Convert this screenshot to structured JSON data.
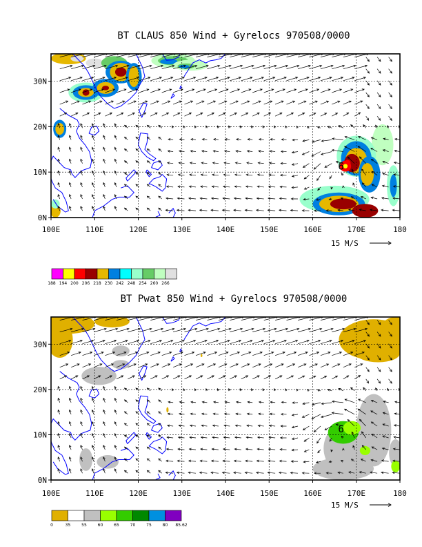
{
  "panels": [
    {
      "title": "BT CLAUS 850 Wind + Gyrelocs 970508/0000",
      "x_ticks": [
        "100E",
        "110E",
        "120E",
        "130E",
        "140E",
        "150E",
        "160E",
        "170E",
        "180"
      ],
      "y_ticks": [
        "0N",
        "10N",
        "20N",
        "30N"
      ],
      "scale_label": "15 M/S",
      "field": "cloud",
      "colorbar": {
        "labels": [
          "188",
          "194",
          "200",
          "206",
          "218",
          "230",
          "242",
          "248",
          "254",
          "260",
          "266"
        ],
        "colors": [
          "#ff00ff",
          "#ffff00",
          "#ff0000",
          "#990000",
          "#e6b800",
          "#0080e0",
          "#00ffff",
          "#99ffcc",
          "#66cc66",
          "#c0ffc0",
          "#e0e0e0"
        ]
      }
    },
    {
      "title": "BT Pwat 850 Wind + Gyrelocs 970508/0000",
      "x_ticks": [
        "100E",
        "110E",
        "120E",
        "130E",
        "140E",
        "150E",
        "160E",
        "170E",
        "180"
      ],
      "y_ticks": [
        "0N",
        "10N",
        "20N",
        "30N"
      ],
      "scale_label": "15 M/S",
      "field": "pwat",
      "colorbar": {
        "labels": [
          "0",
          "35",
          "55",
          "60",
          "65",
          "70",
          "75",
          "80",
          "85.62"
        ],
        "colors": [
          "#e0b000",
          "#ffffff",
          "#c0c0c0",
          "#99ff00",
          "#33cc00",
          "#008800",
          "#0090e0",
          "#8000c0"
        ]
      }
    }
  ],
  "map": {
    "lon_range": [
      100,
      180
    ],
    "lat_range": [
      0,
      36
    ],
    "coastline_color": "#0000ff",
    "gyre_marker": {
      "lon": 166.5,
      "lat": 11.3,
      "symbol": "6"
    }
  }
}
